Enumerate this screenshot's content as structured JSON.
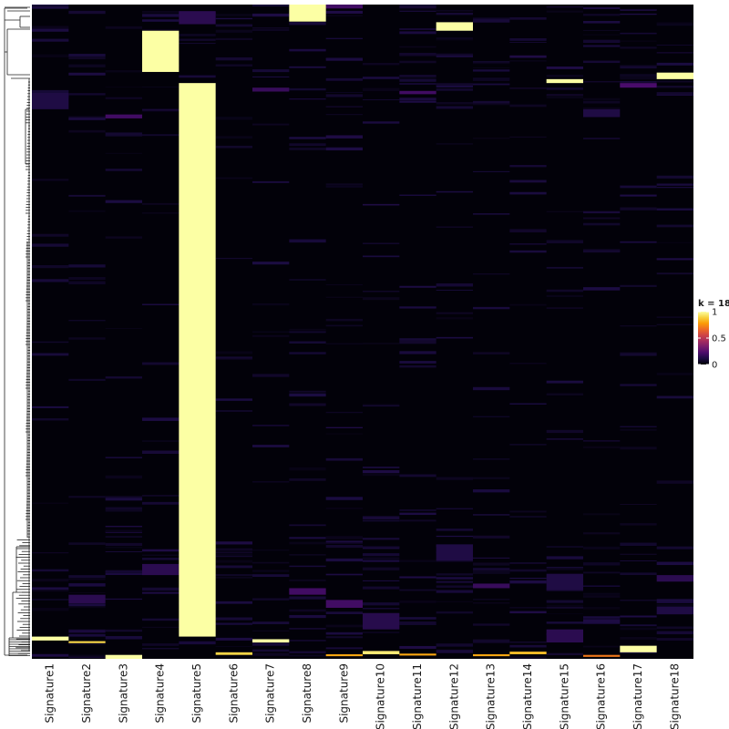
{
  "chart_data": {
    "type": "heatmap",
    "columns": [
      "Signature1",
      "Signature2",
      "Signature3",
      "Signature4",
      "Signature5",
      "Signature6",
      "Signature7",
      "Signature8",
      "Signature9",
      "Signature10",
      "Signature11",
      "Signature12",
      "Signature13",
      "Signature14",
      "Signature15",
      "Signature16",
      "Signature17",
      "Signature18"
    ],
    "row_order_fraction": "top=0, bottom=1",
    "value_range": [
      0,
      1
    ],
    "background_value": 0.01,
    "high_blocks": [
      {
        "column": "Signature8",
        "row_start": 0.0,
        "row_end": 0.026,
        "value": 1.0
      },
      {
        "column": "Signature4",
        "row_start": 0.04,
        "row_end": 0.103,
        "value": 1.0
      },
      {
        "column": "Signature12",
        "row_start": 0.027,
        "row_end": 0.04,
        "value": 1.0
      },
      {
        "column": "Signature18",
        "row_start": 0.104,
        "row_end": 0.114,
        "value": 1.0
      },
      {
        "column": "Signature15",
        "row_start": 0.114,
        "row_end": 0.12,
        "value": 1.0
      },
      {
        "column": "Signature5",
        "row_start": 0.12,
        "row_end": 0.966,
        "value": 1.0
      },
      {
        "column": "Signature1",
        "row_start": 0.966,
        "row_end": 0.972,
        "value": 1.0
      },
      {
        "column": "Signature2",
        "row_start": 0.973,
        "row_end": 0.976,
        "value": 0.9
      },
      {
        "column": "Signature7",
        "row_start": 0.97,
        "row_end": 0.975,
        "value": 1.0
      },
      {
        "column": "Signature17",
        "row_start": 0.98,
        "row_end": 0.99,
        "value": 1.0
      },
      {
        "column": "Signature10",
        "row_start": 0.988,
        "row_end": 0.993,
        "value": 0.95
      },
      {
        "column": "Signature6",
        "row_start": 0.99,
        "row_end": 0.994,
        "value": 0.9
      },
      {
        "column": "Signature14",
        "row_start": 0.989,
        "row_end": 0.993,
        "value": 0.85
      },
      {
        "column": "Signature11",
        "row_start": 0.992,
        "row_end": 0.995,
        "value": 0.8
      },
      {
        "column": "Signature9",
        "row_start": 0.993,
        "row_end": 0.996,
        "value": 0.8
      },
      {
        "column": "Signature13",
        "row_start": 0.993,
        "row_end": 0.996,
        "value": 0.8
      },
      {
        "column": "Signature16",
        "row_start": 0.994,
        "row_end": 0.997,
        "value": 0.7
      },
      {
        "column": "Signature3",
        "row_start": 0.994,
        "row_end": 1.0,
        "value": 1.0
      }
    ],
    "low_blocks": [
      {
        "column": "Signature1",
        "row_start": 0.135,
        "row_end": 0.16,
        "value": 0.12
      },
      {
        "column": "Signature10",
        "row_start": 0.93,
        "row_end": 0.955,
        "value": 0.14
      },
      {
        "column": "Signature15",
        "row_start": 0.955,
        "row_end": 0.975,
        "value": 0.15
      },
      {
        "column": "Signature15",
        "row_start": 0.87,
        "row_end": 0.895,
        "value": 0.12
      },
      {
        "column": "Signature12",
        "row_start": 0.825,
        "row_end": 0.85,
        "value": 0.12
      },
      {
        "column": "Signature4",
        "row_start": 0.855,
        "row_end": 0.872,
        "value": 0.15
      },
      {
        "column": "Signature9",
        "row_start": 0.91,
        "row_end": 0.922,
        "value": 0.2
      },
      {
        "column": "Signature2",
        "row_start": 0.902,
        "row_end": 0.915,
        "value": 0.15
      },
      {
        "column": "Signature8",
        "row_start": 0.892,
        "row_end": 0.902,
        "value": 0.2
      },
      {
        "column": "Signature16",
        "row_start": 0.16,
        "row_end": 0.172,
        "value": 0.12
      },
      {
        "column": "Signature17",
        "row_start": 0.12,
        "row_end": 0.127,
        "value": 0.22
      },
      {
        "column": "Signature7",
        "row_start": 0.127,
        "row_end": 0.133,
        "value": 0.18
      },
      {
        "column": "Signature18",
        "row_start": 0.872,
        "row_end": 0.882,
        "value": 0.15
      },
      {
        "column": "Signature18",
        "row_start": 0.92,
        "row_end": 0.932,
        "value": 0.12
      },
      {
        "column": "Signature13",
        "row_start": 0.885,
        "row_end": 0.892,
        "value": 0.18
      },
      {
        "column": "Signature3",
        "row_start": 0.168,
        "row_end": 0.174,
        "value": 0.2
      },
      {
        "column": "Signature5",
        "row_start": 0.01,
        "row_end": 0.03,
        "value": 0.15
      },
      {
        "column": "Signature11",
        "row_start": 0.132,
        "row_end": 0.137,
        "value": 0.2
      },
      {
        "column": "Signature9",
        "row_start": 0.0,
        "row_end": 0.006,
        "value": 0.2
      }
    ],
    "dendrogram": "left, row clustering",
    "legend": {
      "title": "k = 18",
      "ticks": [
        {
          "value": 1,
          "label": "1"
        },
        {
          "value": 0.5,
          "label": "0.5"
        },
        {
          "value": 0,
          "label": "0"
        }
      ],
      "placement": "right"
    },
    "colormap": [
      "#000004",
      "#1b0c41",
      "#4a0c6b",
      "#781c6d",
      "#a52c60",
      "#cf4446",
      "#ed6925",
      "#fb9b06",
      "#f7d13d",
      "#fcffa4"
    ],
    "grid": false
  }
}
